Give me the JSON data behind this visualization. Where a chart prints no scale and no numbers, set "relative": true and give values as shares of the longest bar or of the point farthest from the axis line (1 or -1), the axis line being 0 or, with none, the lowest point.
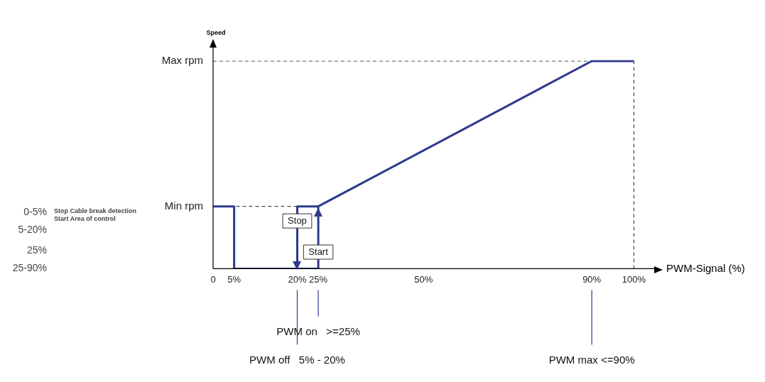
{
  "chart_data": {
    "type": "line",
    "xlabel": "PWM-Signal (%)",
    "ylabel": "Speed",
    "relative": true,
    "xlim": [
      0,
      105
    ],
    "xticks": [
      {
        "value": 0,
        "label": "0"
      },
      {
        "value": 5,
        "label": "5%"
      },
      {
        "value": 20,
        "label": "20%"
      },
      {
        "value": 25,
        "label": "25%"
      },
      {
        "value": 50,
        "label": "50%"
      },
      {
        "value": 90,
        "label": "90%"
      },
      {
        "value": 100,
        "label": "100%"
      }
    ],
    "grid": false,
    "legend": false,
    "marker": "none",
    "series": [
      {
        "color": "#2e3a8c",
        "line_style": "solid",
        "x": [
          0,
          5,
          5,
          25,
          25,
          90,
          100
        ],
        "values": [
          0.3,
          0.3,
          0,
          0,
          0.3,
          1,
          1
        ]
      },
      {
        "color": "#2e3a8c",
        "line_style": "solid",
        "x": [
          20,
          20,
          25
        ],
        "values": [
          0,
          0.3,
          0.3
        ]
      },
      {
        "color": "#222222",
        "line_style": "dashed",
        "x": [
          0,
          90
        ],
        "values": [
          1,
          1
        ]
      },
      {
        "color": "#222222",
        "line_style": "dashed",
        "x": [
          20,
          0
        ],
        "values": [
          0.3,
          0.3
        ]
      },
      {
        "color": "#222222",
        "line_style": "dashed",
        "x": [
          100,
          100
        ],
        "values": [
          0,
          1
        ]
      }
    ],
    "annotations": [
      {
        "text": "Max rpm",
        "x": 0,
        "y": 1
      },
      {
        "text": "Min rpm",
        "x": 0,
        "y": 0.3
      },
      {
        "text": "Stop",
        "x": 20,
        "y": 0.23
      },
      {
        "text": "Start",
        "x": 25,
        "y": 0.08
      },
      {
        "text": "PWM off   5% - 20%",
        "x": 20
      },
      {
        "text": "PWM on   >=25%",
        "x": 25
      },
      {
        "text": "PWM max <=90%",
        "x": 90
      },
      "0-5%",
      "Stop Cable break detection",
      "5-20%",
      "Start Area of control",
      "25%",
      "25-90%"
    ]
  }
}
